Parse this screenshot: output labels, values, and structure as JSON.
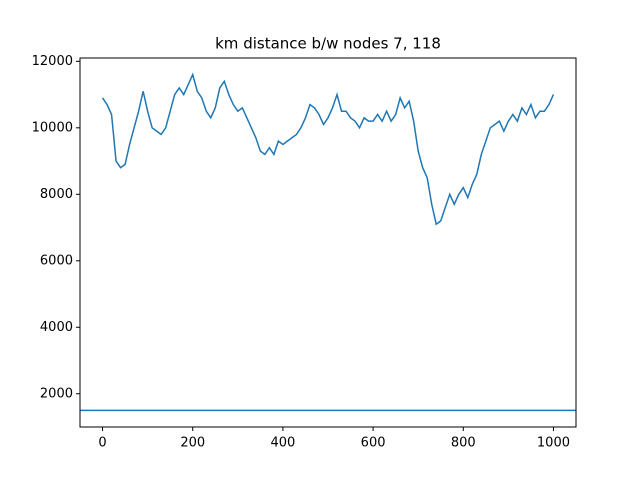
{
  "chart_data": {
    "type": "line",
    "title": "km distance b/w nodes 7, 118",
    "x": [
      0,
      10,
      20,
      30,
      40,
      50,
      60,
      70,
      80,
      90,
      100,
      110,
      120,
      130,
      140,
      150,
      160,
      170,
      180,
      190,
      200,
      210,
      220,
      230,
      240,
      250,
      260,
      270,
      280,
      290,
      300,
      310,
      320,
      330,
      340,
      350,
      360,
      370,
      380,
      390,
      400,
      410,
      420,
      430,
      440,
      450,
      460,
      470,
      480,
      490,
      500,
      510,
      520,
      530,
      540,
      550,
      560,
      570,
      580,
      590,
      600,
      610,
      620,
      630,
      640,
      650,
      660,
      670,
      680,
      690,
      700,
      710,
      720,
      730,
      740,
      750,
      760,
      770,
      780,
      790,
      800,
      810,
      820,
      830,
      840,
      850,
      860,
      870,
      880,
      890,
      900,
      910,
      920,
      930,
      940,
      950,
      960,
      970,
      980,
      990,
      1000
    ],
    "series": [
      {
        "color": "#1f77b4",
        "values": [
          10900,
          10700,
          10400,
          9000,
          8800,
          8900,
          9500,
          10000,
          10500,
          11100,
          10500,
          10000,
          9900,
          9800,
          10000,
          10500,
          11000,
          11200,
          11000,
          11300,
          11600,
          11100,
          10900,
          10500,
          10300,
          10600,
          11200,
          11400,
          11000,
          10700,
          10500,
          10600,
          10300,
          10000,
          9700,
          9300,
          9200,
          9400,
          9200,
          9600,
          9500,
          9600,
          9700,
          9800,
          10000,
          10300,
          10700,
          10600,
          10400,
          10100,
          10300,
          10600,
          11000,
          10500,
          10500,
          10300,
          10200,
          10000,
          10300,
          10200,
          10200,
          10400,
          10200,
          10500,
          10200,
          10400,
          10900,
          10600,
          10800,
          10200,
          9300,
          8800,
          8500,
          7700,
          7100,
          7200,
          7600,
          8000,
          7700,
          8000,
          8200,
          7900,
          8300,
          8600,
          9200,
          9600,
          10000,
          10100,
          10200,
          9900,
          10200,
          10400,
          10200,
          10600,
          10400,
          10700,
          10300,
          10500,
          10500,
          10700,
          11000
        ]
      }
    ],
    "hline": 1500,
    "hline_color": "#1f77b4",
    "xlim": [
      -50,
      1050
    ],
    "xticks": [
      0,
      200,
      400,
      600,
      800,
      1000
    ],
    "ylim": [
      1000,
      12100
    ],
    "yticks": [
      2000,
      4000,
      6000,
      8000,
      10000,
      12000
    ]
  }
}
